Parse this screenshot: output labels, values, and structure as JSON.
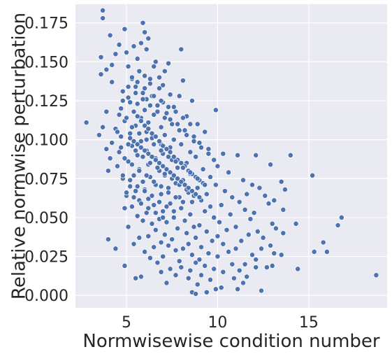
{
  "chart_data": {
    "type": "scatter",
    "xlabel": "Normwisewise condition number",
    "ylabel": "Relative normwise perturbation",
    "xlim": [
      2.2,
      19.3
    ],
    "ylim": [
      -0.008,
      0.187
    ],
    "x_ticks": [
      5,
      10,
      15
    ],
    "y_ticks": [
      0.0,
      0.025,
      0.05,
      0.075,
      0.1,
      0.125,
      0.15,
      0.175
    ],
    "x_tick_labels": [
      "5",
      "10",
      "15"
    ],
    "y_tick_labels": [
      "0.000",
      "0.025",
      "0.050",
      "0.075",
      "0.100",
      "0.125",
      "0.150",
      "0.175"
    ],
    "grid": true,
    "colors": {
      "background": "#eaeaf2",
      "grid": "#ffffff",
      "marker": "#4c72b0",
      "marker_edge": "#ffffff"
    },
    "points": [
      [
        3.7,
        0.183
      ],
      [
        3.7,
        0.178
      ],
      [
        5.9,
        0.175
      ],
      [
        4.9,
        0.171
      ],
      [
        6.0,
        0.169
      ],
      [
        4.1,
        0.167
      ],
      [
        6.2,
        0.165
      ],
      [
        5.8,
        0.162
      ],
      [
        4.6,
        0.161
      ],
      [
        5.4,
        0.16
      ],
      [
        8.0,
        0.158
      ],
      [
        6.1,
        0.158
      ],
      [
        5.0,
        0.156
      ],
      [
        4.4,
        0.155
      ],
      [
        3.6,
        0.153
      ],
      [
        5.6,
        0.152
      ],
      [
        6.6,
        0.15
      ],
      [
        7.3,
        0.149
      ],
      [
        4.2,
        0.148
      ],
      [
        5.1,
        0.147
      ],
      [
        6.5,
        0.147
      ],
      [
        3.9,
        0.145
      ],
      [
        5.7,
        0.144
      ],
      [
        7.1,
        0.144
      ],
      [
        3.6,
        0.142
      ],
      [
        6.0,
        0.141
      ],
      [
        6.8,
        0.14
      ],
      [
        5.3,
        0.139
      ],
      [
        8.1,
        0.138
      ],
      [
        4.2,
        0.137
      ],
      [
        6.3,
        0.136
      ],
      [
        7.0,
        0.135
      ],
      [
        5.5,
        0.134
      ],
      [
        6.8,
        0.133
      ],
      [
        4.8,
        0.131
      ],
      [
        5.9,
        0.13
      ],
      [
        7.4,
        0.129
      ],
      [
        6.4,
        0.128
      ],
      [
        7.9,
        0.128
      ],
      [
        5.1,
        0.127
      ],
      [
        6.1,
        0.126
      ],
      [
        8.6,
        0.125
      ],
      [
        7.0,
        0.124
      ],
      [
        5.6,
        0.123
      ],
      [
        6.7,
        0.122
      ],
      [
        7.6,
        0.121
      ],
      [
        4.7,
        0.12
      ],
      [
        6.0,
        0.119
      ],
      [
        9.9,
        0.119
      ],
      [
        5.4,
        0.118
      ],
      [
        7.2,
        0.117
      ],
      [
        3.9,
        0.118
      ],
      [
        6.5,
        0.116
      ],
      [
        8.3,
        0.115
      ],
      [
        5.8,
        0.114
      ],
      [
        7.4,
        0.113
      ],
      [
        4.9,
        0.112
      ],
      [
        6.2,
        0.111
      ],
      [
        2.8,
        0.111
      ],
      [
        8.9,
        0.11
      ],
      [
        7.8,
        0.11
      ],
      [
        5.5,
        0.109
      ],
      [
        3.7,
        0.108
      ],
      [
        6.9,
        0.108
      ],
      [
        4.4,
        0.107
      ],
      [
        8.2,
        0.106
      ],
      [
        6.1,
        0.105
      ],
      [
        9.3,
        0.105
      ],
      [
        5.2,
        0.104
      ],
      [
        7.1,
        0.103
      ],
      [
        3.5,
        0.103
      ],
      [
        4.7,
        0.102
      ],
      [
        8.7,
        0.102
      ],
      [
        6.4,
        0.101
      ],
      [
        7.6,
        0.1
      ],
      [
        5.8,
        0.099
      ],
      [
        9.0,
        0.098
      ],
      [
        4.2,
        0.098
      ],
      [
        6.9,
        0.097
      ],
      [
        8.0,
        0.097
      ],
      [
        5.3,
        0.096
      ],
      [
        7.4,
        0.095
      ],
      [
        3.9,
        0.094
      ],
      [
        9.5,
        0.094
      ],
      [
        6.1,
        0.093
      ],
      [
        8.5,
        0.092
      ],
      [
        4.6,
        0.092
      ],
      [
        10.3,
        0.091
      ],
      [
        7.0,
        0.091
      ],
      [
        5.6,
        0.09
      ],
      [
        11.1,
        0.09
      ],
      [
        12.1,
        0.09
      ],
      [
        14.0,
        0.09
      ],
      [
        8.8,
        0.089
      ],
      [
        6.6,
        0.088
      ],
      [
        4.1,
        0.088
      ],
      [
        9.8,
        0.087
      ],
      [
        7.5,
        0.087
      ],
      [
        5.1,
        0.086
      ],
      [
        8.3,
        0.085
      ],
      [
        12.9,
        0.084
      ],
      [
        6.2,
        0.084
      ],
      [
        4.5,
        0.083
      ],
      [
        10.0,
        0.083
      ],
      [
        7.8,
        0.082
      ],
      [
        5.7,
        0.081
      ],
      [
        9.2,
        0.081
      ],
      [
        4.0,
        0.08
      ],
      [
        6.8,
        0.08
      ],
      [
        10.6,
        0.079
      ],
      [
        8.5,
        0.078
      ],
      [
        5.4,
        0.077
      ],
      [
        15.2,
        0.077
      ],
      [
        7.1,
        0.077
      ],
      [
        9.6,
        0.076
      ],
      [
        6.3,
        0.076
      ],
      [
        4.8,
        0.075
      ],
      [
        8.1,
        0.074
      ],
      [
        11.4,
        0.074
      ],
      [
        13.5,
        0.073
      ],
      [
        5.9,
        0.073
      ],
      [
        7.7,
        0.072
      ],
      [
        9.9,
        0.071
      ],
      [
        6.6,
        0.071
      ],
      [
        11.9,
        0.071
      ],
      [
        5.2,
        0.07
      ],
      [
        8.9,
        0.069
      ],
      [
        12.3,
        0.069
      ],
      [
        7.3,
        0.069
      ],
      [
        6.0,
        0.068
      ],
      [
        10.4,
        0.067
      ],
      [
        13.7,
        0.068
      ],
      [
        5.5,
        0.067
      ],
      [
        8.4,
        0.066
      ],
      [
        9.4,
        0.065
      ],
      [
        11.6,
        0.065
      ],
      [
        6.9,
        0.065
      ],
      [
        12.6,
        0.064
      ],
      [
        5.0,
        0.064
      ],
      [
        7.9,
        0.063
      ],
      [
        10.8,
        0.063
      ],
      [
        6.2,
        0.062
      ],
      [
        9.1,
        0.061
      ],
      [
        13.1,
        0.061
      ],
      [
        5.7,
        0.061
      ],
      [
        8.6,
        0.06
      ],
      [
        11.2,
        0.06
      ],
      [
        7.4,
        0.059
      ],
      [
        12.8,
        0.059
      ],
      [
        6.5,
        0.058
      ],
      [
        10.2,
        0.058
      ],
      [
        9.6,
        0.057
      ],
      [
        5.3,
        0.057
      ],
      [
        8.0,
        0.056
      ],
      [
        4.9,
        0.056
      ],
      [
        11.5,
        0.055
      ],
      [
        13.6,
        0.055
      ],
      [
        7.0,
        0.054
      ],
      [
        9.3,
        0.054
      ],
      [
        6.1,
        0.053
      ],
      [
        12.0,
        0.053
      ],
      [
        8.5,
        0.052
      ],
      [
        10.7,
        0.052
      ],
      [
        5.6,
        0.051
      ],
      [
        7.6,
        0.05
      ],
      [
        16.8,
        0.05
      ],
      [
        9.8,
        0.05
      ],
      [
        6.8,
        0.049
      ],
      [
        11.8,
        0.049
      ],
      [
        8.2,
        0.048
      ],
      [
        5.9,
        0.048
      ],
      [
        10.1,
        0.047
      ],
      [
        7.2,
        0.047
      ],
      [
        13.0,
        0.046
      ],
      [
        14.3,
        0.046
      ],
      [
        16.6,
        0.045
      ],
      [
        6.4,
        0.046
      ],
      [
        9.0,
        0.045
      ],
      [
        8.7,
        0.044
      ],
      [
        11.0,
        0.044
      ],
      [
        5.1,
        0.044
      ],
      [
        13.2,
        0.043
      ],
      [
        7.8,
        0.043
      ],
      [
        10.5,
        0.042
      ],
      [
        6.6,
        0.042
      ],
      [
        12.2,
        0.041
      ],
      [
        9.4,
        0.041
      ],
      [
        8.3,
        0.04
      ],
      [
        13.6,
        0.04
      ],
      [
        7.1,
        0.039
      ],
      [
        11.7,
        0.039
      ],
      [
        6.2,
        0.038
      ],
      [
        10.0,
        0.038
      ],
      [
        8.8,
        0.037
      ],
      [
        12.5,
        0.037
      ],
      [
        5.7,
        0.037
      ],
      [
        4.0,
        0.036
      ],
      [
        7.5,
        0.036
      ],
      [
        9.7,
        0.035
      ],
      [
        11.3,
        0.035
      ],
      [
        6.9,
        0.034
      ],
      [
        15.8,
        0.034
      ],
      [
        8.4,
        0.033
      ],
      [
        10.3,
        0.033
      ],
      [
        5.4,
        0.033
      ],
      [
        12.9,
        0.032
      ],
      [
        7.3,
        0.032
      ],
      [
        9.1,
        0.031
      ],
      [
        6.5,
        0.031
      ],
      [
        11.0,
        0.03
      ],
      [
        4.4,
        0.03
      ],
      [
        8.1,
        0.03
      ],
      [
        12.4,
        0.03
      ],
      [
        7.7,
        0.029
      ],
      [
        15.3,
        0.028
      ],
      [
        16.0,
        0.028
      ],
      [
        10.6,
        0.028
      ],
      [
        6.0,
        0.028
      ],
      [
        9.5,
        0.027
      ],
      [
        13.1,
        0.027
      ],
      [
        8.6,
        0.026
      ],
      [
        11.9,
        0.026
      ],
      [
        13.5,
        0.026
      ],
      [
        7.0,
        0.025
      ],
      [
        10.0,
        0.025
      ],
      [
        6.3,
        0.024
      ],
      [
        9.0,
        0.023
      ],
      [
        12.1,
        0.023
      ],
      [
        7.9,
        0.022
      ],
      [
        8.8,
        0.021
      ],
      [
        6.7,
        0.021
      ],
      [
        10.8,
        0.02
      ],
      [
        11.5,
        0.02
      ],
      [
        4.9,
        0.019
      ],
      [
        9.3,
        0.019
      ],
      [
        13.0,
        0.019
      ],
      [
        8.0,
        0.018
      ],
      [
        12.1,
        0.018
      ],
      [
        7.4,
        0.017
      ],
      [
        14.4,
        0.017
      ],
      [
        9.8,
        0.017
      ],
      [
        12.7,
        0.018
      ],
      [
        8.5,
        0.016
      ],
      [
        11.2,
        0.016
      ],
      [
        6.9,
        0.015
      ],
      [
        10.3,
        0.015
      ],
      [
        18.7,
        0.013
      ],
      [
        9.1,
        0.013
      ],
      [
        7.7,
        0.013
      ],
      [
        11.6,
        0.012
      ],
      [
        5.8,
        0.012
      ],
      [
        8.4,
        0.011
      ],
      [
        5.5,
        0.011
      ],
      [
        10.9,
        0.011
      ],
      [
        9.6,
        0.01
      ],
      [
        11.4,
        0.008
      ],
      [
        7.2,
        0.008
      ],
      [
        8.9,
        0.007
      ],
      [
        10.2,
        0.005
      ],
      [
        9.9,
        0.004
      ],
      [
        11.1,
        0.004
      ],
      [
        12.4,
        0.003
      ],
      [
        8.6,
        0.002
      ],
      [
        9.4,
        0.002
      ],
      [
        8.8,
        0.001
      ],
      [
        5.2,
        0.124
      ],
      [
        5.4,
        0.118
      ],
      [
        5.6,
        0.115
      ],
      [
        5.8,
        0.112
      ],
      [
        6.0,
        0.109
      ],
      [
        6.2,
        0.107
      ],
      [
        6.4,
        0.104
      ],
      [
        6.6,
        0.102
      ],
      [
        6.8,
        0.099
      ],
      [
        7.0,
        0.096
      ],
      [
        7.2,
        0.094
      ],
      [
        7.4,
        0.092
      ],
      [
        7.6,
        0.089
      ],
      [
        7.8,
        0.087
      ],
      [
        8.0,
        0.085
      ],
      [
        8.2,
        0.083
      ],
      [
        8.4,
        0.08
      ],
      [
        8.6,
        0.078
      ],
      [
        8.8,
        0.076
      ],
      [
        9.0,
        0.074
      ],
      [
        9.2,
        0.072
      ],
      [
        5.3,
        0.108
      ],
      [
        5.7,
        0.104
      ],
      [
        6.1,
        0.1
      ],
      [
        6.5,
        0.097
      ],
      [
        6.9,
        0.093
      ],
      [
        7.3,
        0.089
      ],
      [
        7.7,
        0.086
      ],
      [
        8.1,
        0.082
      ],
      [
        8.5,
        0.079
      ],
      [
        8.9,
        0.075
      ],
      [
        9.3,
        0.071
      ],
      [
        5.1,
        0.097
      ],
      [
        5.5,
        0.093
      ],
      [
        5.9,
        0.089
      ],
      [
        6.3,
        0.085
      ],
      [
        6.7,
        0.082
      ],
      [
        7.1,
        0.078
      ],
      [
        7.5,
        0.075
      ],
      [
        7.9,
        0.071
      ],
      [
        8.3,
        0.068
      ],
      [
        8.7,
        0.064
      ],
      [
        4.9,
        0.088
      ],
      [
        5.3,
        0.084
      ],
      [
        5.7,
        0.08
      ],
      [
        6.1,
        0.077
      ],
      [
        6.5,
        0.073
      ],
      [
        6.9,
        0.07
      ],
      [
        7.3,
        0.066
      ],
      [
        7.7,
        0.063
      ],
      [
        8.1,
        0.06
      ],
      [
        4.8,
        0.077
      ],
      [
        5.2,
        0.074
      ],
      [
        5.6,
        0.07
      ],
      [
        6.0,
        0.067
      ],
      [
        6.4,
        0.064
      ],
      [
        6.8,
        0.06
      ],
      [
        7.2,
        0.057
      ],
      [
        7.6,
        0.054
      ],
      [
        5.0,
        0.066
      ],
      [
        5.4,
        0.063
      ],
      [
        5.8,
        0.059
      ],
      [
        6.2,
        0.056
      ],
      [
        6.6,
        0.053
      ],
      [
        7.0,
        0.05
      ],
      [
        5.1,
        0.134
      ],
      [
        5.5,
        0.13
      ],
      [
        5.9,
        0.126
      ],
      [
        6.3,
        0.122
      ],
      [
        6.7,
        0.118
      ],
      [
        7.1,
        0.114
      ],
      [
        7.5,
        0.11
      ],
      [
        7.9,
        0.106
      ],
      [
        8.3,
        0.103
      ],
      [
        8.7,
        0.099
      ],
      [
        9.1,
        0.095
      ],
      [
        9.5,
        0.091
      ],
      [
        4.8,
        0.125
      ],
      [
        4.6,
        0.116
      ],
      [
        4.5,
        0.105
      ],
      [
        4.7,
        0.095
      ],
      [
        5.0,
        0.114
      ],
      [
        6.5,
        0.128
      ],
      [
        6.9,
        0.125
      ],
      [
        7.3,
        0.121
      ],
      [
        7.7,
        0.118
      ],
      [
        8.1,
        0.114
      ],
      [
        8.5,
        0.11
      ],
      [
        5.3,
        0.14
      ],
      [
        5.6,
        0.137
      ],
      [
        6.3,
        0.139
      ],
      [
        6.0,
        0.133
      ],
      [
        5.2,
        0.101
      ],
      [
        5.4,
        0.099
      ],
      [
        5.6,
        0.097
      ],
      [
        5.8,
        0.095
      ],
      [
        6.0,
        0.093
      ],
      [
        6.2,
        0.091
      ],
      [
        6.4,
        0.089
      ],
      [
        6.6,
        0.087
      ],
      [
        6.8,
        0.085
      ],
      [
        7.0,
        0.083
      ],
      [
        7.2,
        0.081
      ],
      [
        7.4,
        0.079
      ],
      [
        7.6,
        0.077
      ],
      [
        7.8,
        0.075
      ],
      [
        8.0,
        0.073
      ],
      [
        8.2,
        0.071
      ],
      [
        8.4,
        0.069
      ],
      [
        8.6,
        0.067
      ],
      [
        8.8,
        0.065
      ],
      [
        9.0,
        0.063
      ]
    ]
  }
}
